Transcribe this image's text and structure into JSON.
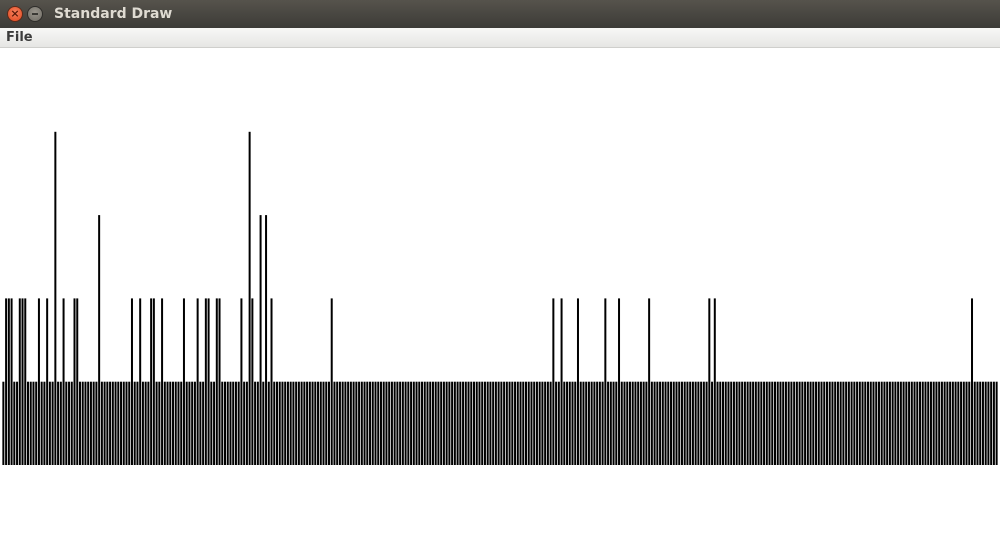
{
  "window": {
    "title": "Standard Draw",
    "close_icon_glyph": "×"
  },
  "menu": {
    "items": [
      "File"
    ]
  },
  "chart_data": {
    "type": "bar",
    "bar_color": "#000000",
    "background": "#ffffff",
    "ylim": [
      0,
      4
    ],
    "values": [
      1,
      2,
      2,
      2,
      1,
      1,
      2,
      2,
      2,
      1,
      1,
      1,
      1,
      2,
      1,
      1,
      2,
      1,
      1,
      4,
      1,
      1,
      2,
      1,
      1,
      1,
      2,
      2,
      1,
      1,
      1,
      1,
      1,
      1,
      1,
      3,
      1,
      1,
      1,
      1,
      1,
      1,
      1,
      1,
      1,
      1,
      1,
      2,
      1,
      1,
      2,
      1,
      1,
      1,
      2,
      2,
      1,
      1,
      2,
      1,
      1,
      1,
      1,
      1,
      1,
      1,
      2,
      1,
      1,
      1,
      1,
      2,
      1,
      1,
      2,
      2,
      1,
      1,
      2,
      2,
      1,
      1,
      1,
      1,
      1,
      1,
      1,
      2,
      1,
      1,
      4,
      2,
      1,
      1,
      3,
      1,
      3,
      1,
      2,
      1,
      1,
      1,
      1,
      1,
      1,
      1,
      1,
      1,
      1,
      1,
      1,
      1,
      1,
      1,
      1,
      1,
      1,
      1,
      1,
      1,
      2,
      1,
      1,
      1,
      1,
      1,
      1,
      1,
      1,
      1,
      1,
      1,
      1,
      1,
      1,
      1,
      1,
      1,
      1,
      1,
      1,
      1,
      1,
      1,
      1,
      1,
      1,
      1,
      1,
      1,
      1,
      1,
      1,
      1,
      1,
      1,
      1,
      1,
      1,
      1,
      1,
      1,
      1,
      1,
      1,
      1,
      1,
      1,
      1,
      1,
      1,
      1,
      1,
      1,
      1,
      1,
      1,
      1,
      1,
      1,
      1,
      1,
      1,
      1,
      1,
      1,
      1,
      1,
      1,
      1,
      1,
      1,
      1,
      1,
      1,
      1,
      1,
      1,
      1,
      1,
      1,
      2,
      1,
      1,
      2,
      1,
      1,
      1,
      1,
      1,
      2,
      1,
      1,
      1,
      1,
      1,
      1,
      1,
      1,
      1,
      2,
      1,
      1,
      1,
      1,
      2,
      1,
      1,
      1,
      1,
      1,
      1,
      1,
      1,
      1,
      1,
      2,
      1,
      1,
      1,
      1,
      1,
      1,
      1,
      1,
      1,
      1,
      1,
      1,
      1,
      1,
      1,
      1,
      1,
      1,
      1,
      1,
      1,
      2,
      1,
      2,
      1,
      1,
      1,
      1,
      1,
      1,
      1,
      1,
      1,
      1,
      1,
      1,
      1,
      1,
      1,
      1,
      1,
      1,
      1,
      1,
      1,
      1,
      1,
      1,
      1,
      1,
      1,
      1,
      1,
      1,
      1,
      1,
      1,
      1,
      1,
      1,
      1,
      1,
      1,
      1,
      1,
      1,
      1,
      1,
      1,
      1,
      1,
      1,
      1,
      1,
      1,
      1,
      1,
      1,
      1,
      1,
      1,
      1,
      1,
      1,
      1,
      1,
      1,
      1,
      1,
      1,
      1,
      1,
      1,
      1,
      1,
      1,
      1,
      1,
      1,
      1,
      1,
      1,
      1,
      1,
      1,
      1,
      1,
      1,
      1,
      1,
      1,
      1,
      1,
      1,
      1,
      1,
      1,
      2,
      1,
      1,
      1,
      1,
      1,
      1,
      1,
      1,
      1
    ]
  }
}
